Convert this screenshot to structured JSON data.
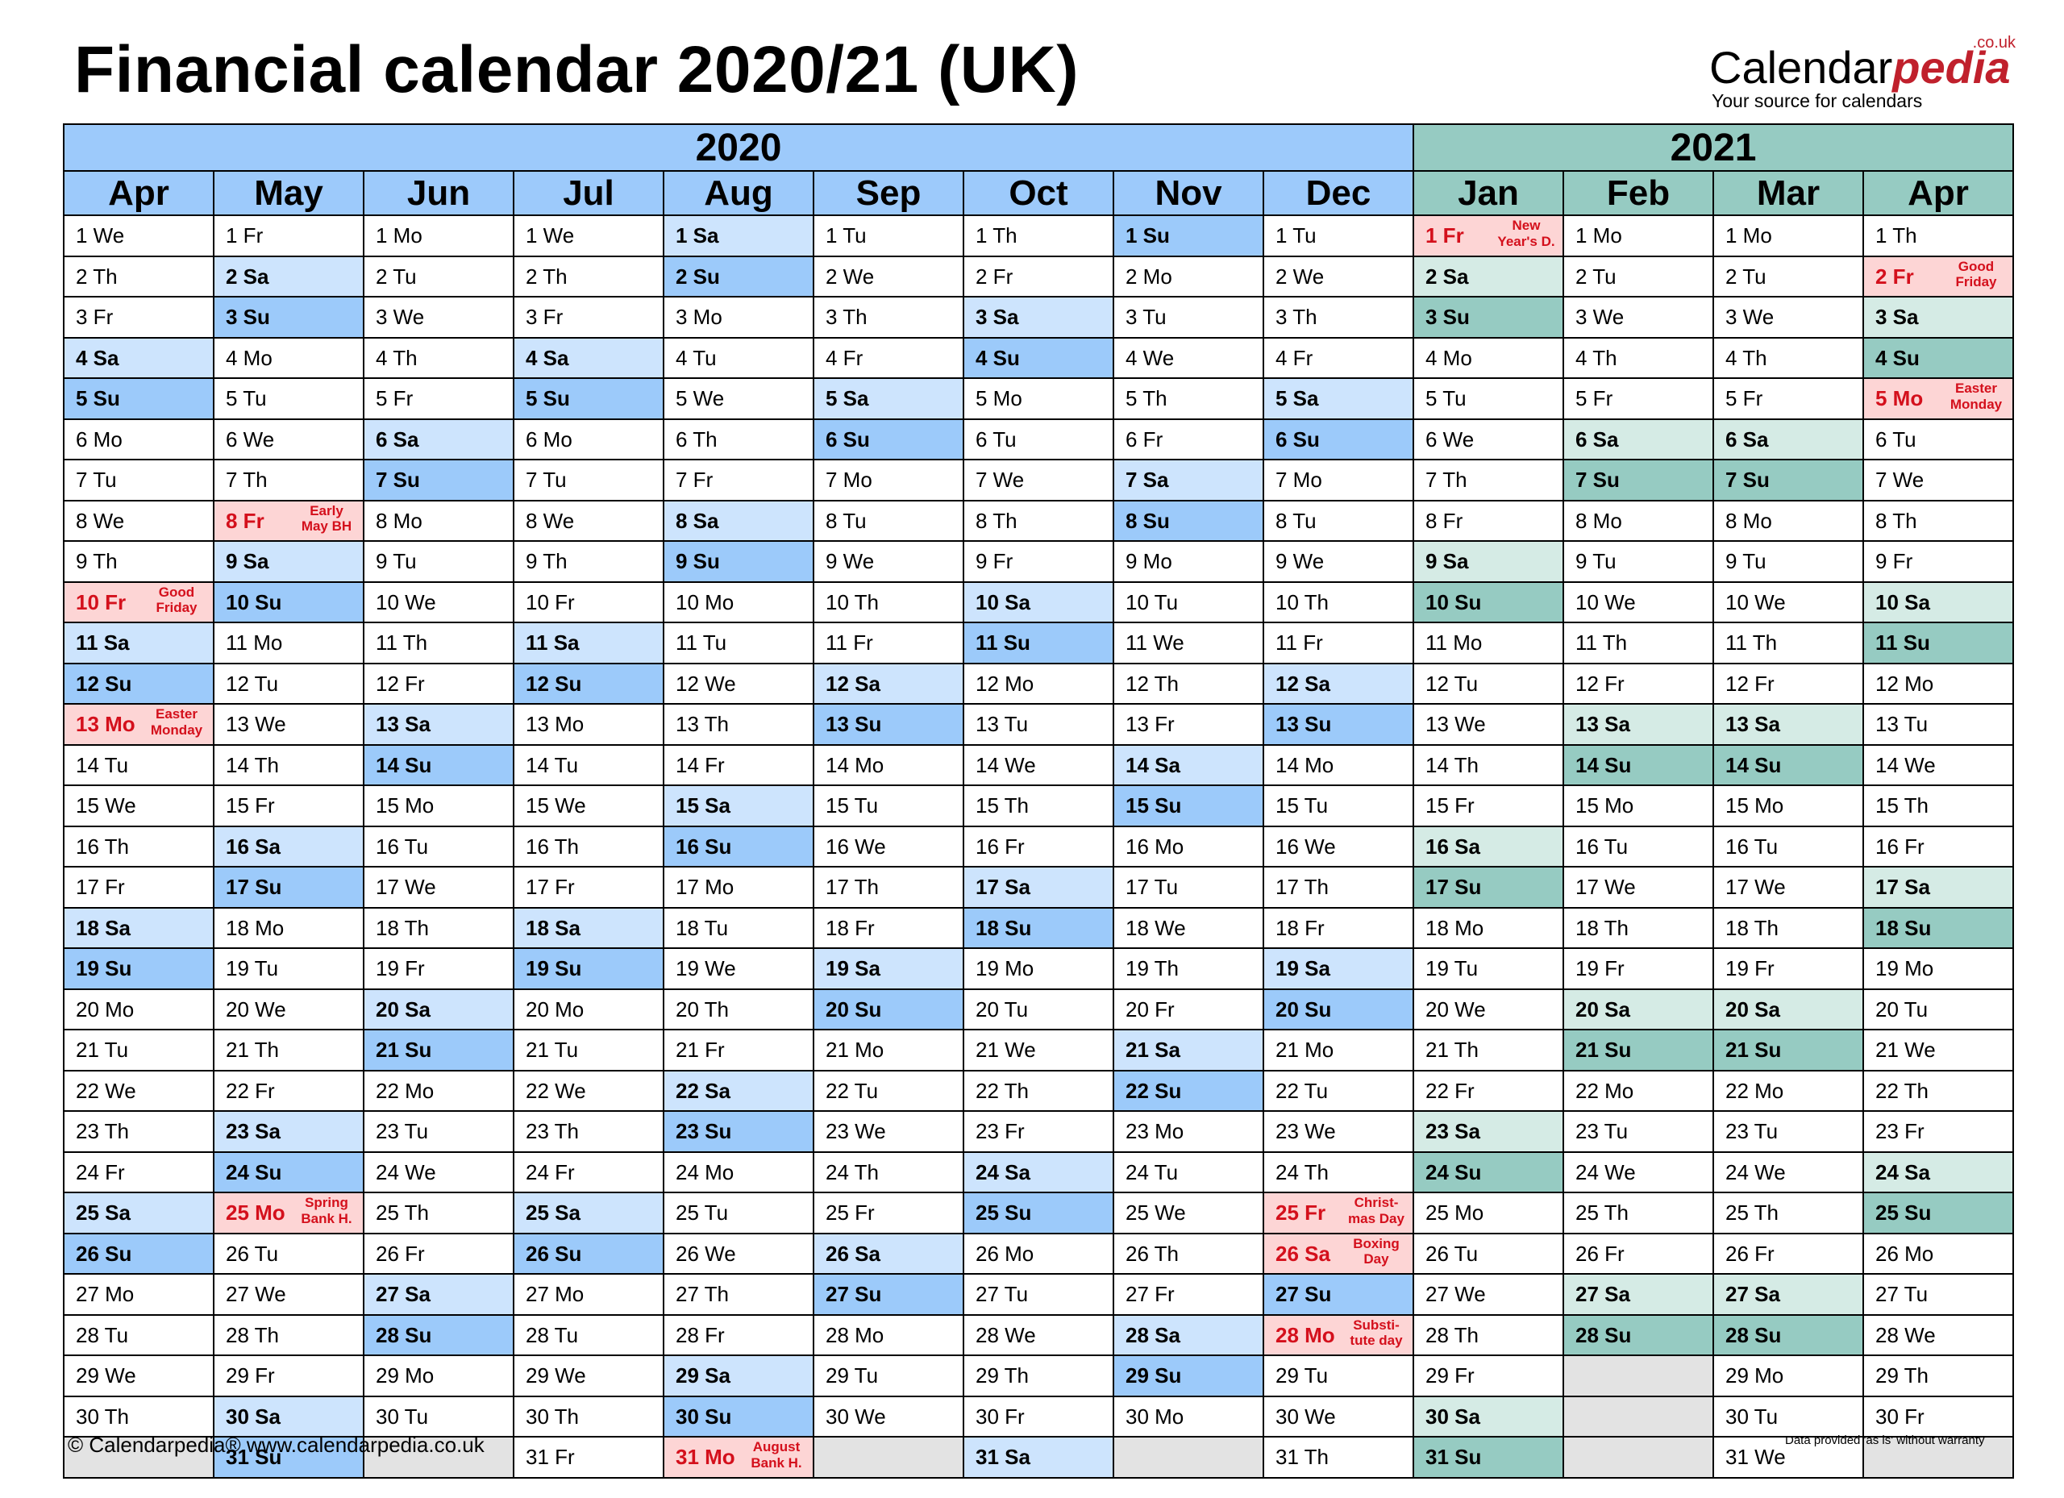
{
  "title": "Financial calendar 2020/21 (UK)",
  "logo": {
    "name_part1": "Calendar",
    "name_part2": "pedia",
    "domain_suffix": ".co.uk",
    "tagline": "Your source for calendars"
  },
  "years": [
    {
      "label": "2020",
      "span": 9,
      "theme": "1"
    },
    {
      "label": "2021",
      "span": 4,
      "theme": "2"
    }
  ],
  "months": [
    {
      "name": "Apr",
      "theme": "1",
      "start": 3,
      "days": 30
    },
    {
      "name": "May",
      "theme": "1",
      "start": 5,
      "days": 31
    },
    {
      "name": "Jun",
      "theme": "1",
      "start": 1,
      "days": 30
    },
    {
      "name": "Jul",
      "theme": "1",
      "start": 3,
      "days": 31
    },
    {
      "name": "Aug",
      "theme": "1",
      "start": 6,
      "days": 31
    },
    {
      "name": "Sep",
      "theme": "1",
      "start": 2,
      "days": 30
    },
    {
      "name": "Oct",
      "theme": "1",
      "start": 4,
      "days": 31
    },
    {
      "name": "Nov",
      "theme": "1",
      "start": 0,
      "days": 30
    },
    {
      "name": "Dec",
      "theme": "1",
      "start": 2,
      "days": 31
    },
    {
      "name": "Jan",
      "theme": "2",
      "start": 5,
      "days": 31
    },
    {
      "name": "Feb",
      "theme": "2",
      "start": 1,
      "days": 28
    },
    {
      "name": "Mar",
      "theme": "2",
      "start": 1,
      "days": 31
    },
    {
      "name": "Apr",
      "theme": "2",
      "start": 4,
      "days": 30
    }
  ],
  "weekday_abbrev": [
    "Su",
    "Mo",
    "Tu",
    "We",
    "Th",
    "Fr",
    "Sa"
  ],
  "holidays": [
    {
      "month": 0,
      "day": 10,
      "note": [
        "Good",
        "Friday"
      ]
    },
    {
      "month": 0,
      "day": 13,
      "note": [
        "Easter",
        "Monday"
      ]
    },
    {
      "month": 1,
      "day": 8,
      "note": [
        "Early",
        "May BH"
      ]
    },
    {
      "month": 1,
      "day": 25,
      "note": [
        "Spring",
        "Bank H."
      ]
    },
    {
      "month": 4,
      "day": 31,
      "note": [
        "August",
        "Bank H."
      ]
    },
    {
      "month": 8,
      "day": 25,
      "note": [
        "Christ-",
        "mas Day"
      ]
    },
    {
      "month": 8,
      "day": 26,
      "note": [
        "Boxing",
        "Day"
      ]
    },
    {
      "month": 8,
      "day": 28,
      "note": [
        "Substi-",
        "tute day"
      ]
    },
    {
      "month": 9,
      "day": 1,
      "note": [
        "New",
        "Year's D."
      ]
    },
    {
      "month": 12,
      "day": 2,
      "note": [
        "Good",
        "Friday"
      ]
    },
    {
      "month": 12,
      "day": 5,
      "note": [
        "Easter",
        "Monday"
      ]
    }
  ],
  "footer": {
    "left": "© Calendarpedia®   www.calendarpedia.co.uk",
    "right": "Data provided 'as is' without warranty"
  }
}
